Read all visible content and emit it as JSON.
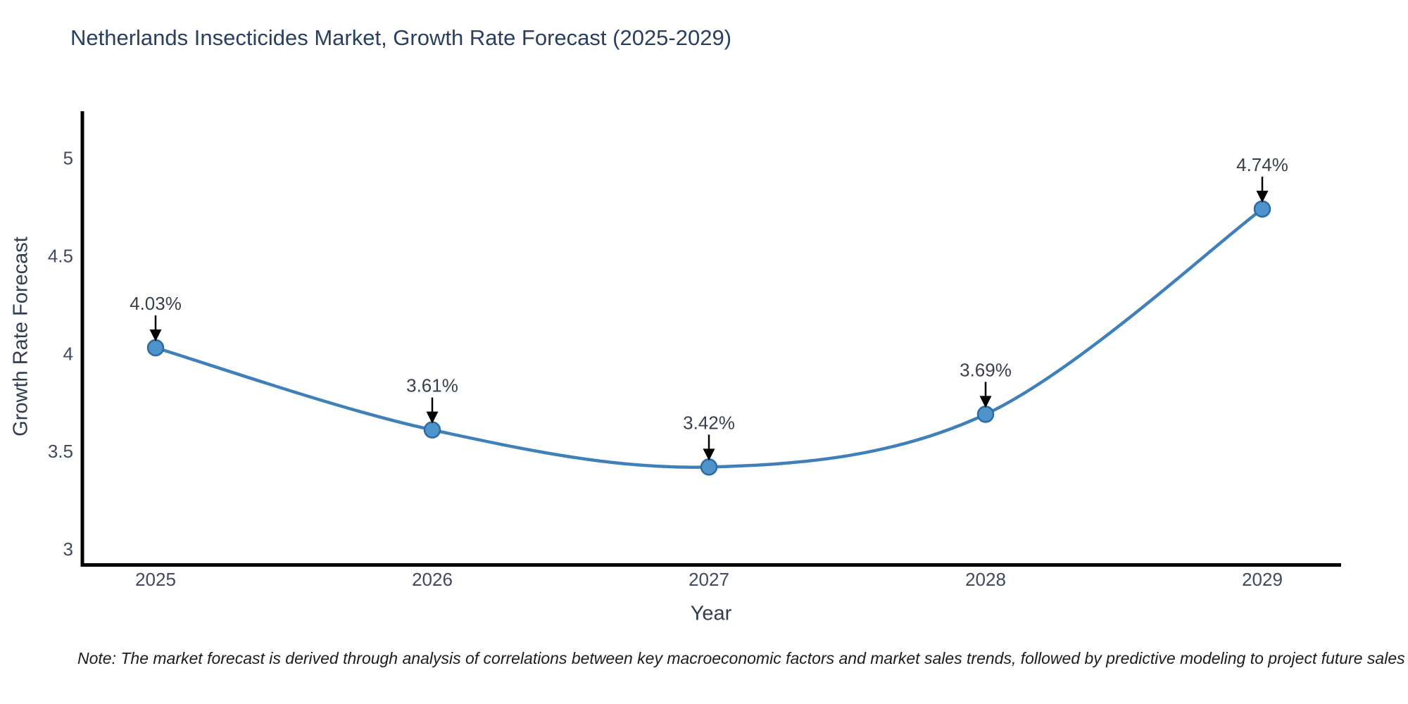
{
  "title": "Netherlands Insecticides Market, Growth Rate Forecast (2025-2029)",
  "axes": {
    "x_label": "Year",
    "y_label": "Growth Rate Forecast"
  },
  "note": "Note: The market forecast is derived through analysis of correlations between key macroeconomic factors and market sales trends, followed by predictive modeling to project future sales",
  "chart_data": {
    "type": "line",
    "title": "Netherlands Insecticides Market, Growth Rate Forecast (2025-2029)",
    "xlabel": "Year",
    "ylabel": "Growth Rate Forecast",
    "categories": [
      "2025",
      "2026",
      "2027",
      "2028",
      "2029"
    ],
    "series": [
      {
        "name": "Growth Rate Forecast",
        "values": [
          4.03,
          3.61,
          3.42,
          3.69,
          4.74
        ]
      }
    ],
    "point_labels": [
      "4.03%",
      "3.61%",
      "3.42%",
      "3.69%",
      "4.74%"
    ],
    "yticks": [
      3,
      3.5,
      4,
      4.5,
      5
    ],
    "ytick_labels": [
      "3",
      "3.5",
      "4",
      "4.5",
      "5"
    ],
    "ylim": [
      2.91,
      5.24
    ],
    "grid": false,
    "legend_position": "none",
    "line_smooth": true,
    "annotations_have_arrows": true,
    "colors": {
      "line": "#3f80ba",
      "marker_fill": "#4d94cd",
      "marker_edge": "#2f6a9e",
      "axis_spine": "#000000",
      "title_text": "#2a3f5f",
      "tick_text": "#3f4a61",
      "annotation_text": "#38404d",
      "arrow": "#000000",
      "background": "#ffffff"
    }
  }
}
